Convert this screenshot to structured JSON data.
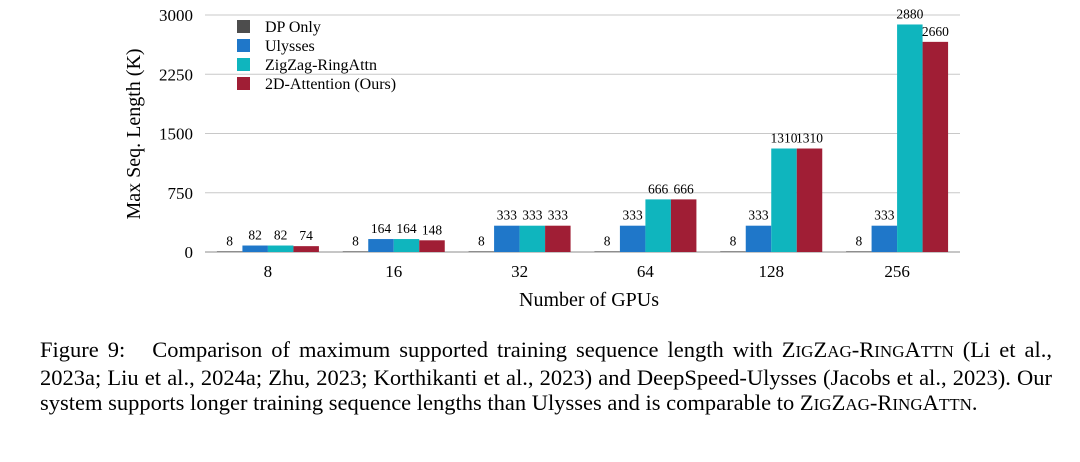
{
  "chart_data": {
    "type": "bar",
    "xlabel": "Number of GPUs",
    "ylabel": "Max Seq. Length (K)",
    "categories": [
      "8",
      "16",
      "32",
      "64",
      "128",
      "256"
    ],
    "ylim": [
      0,
      3000
    ],
    "yticks": [
      0,
      750,
      1500,
      2250,
      3000
    ],
    "grid": true,
    "legend_position": "top-left",
    "series": [
      {
        "name": "DP Only",
        "color": "#4d4d4d",
        "values": [
          8,
          8,
          8,
          8,
          8,
          8
        ],
        "labels": [
          "8",
          "8",
          "8",
          "8",
          "8",
          "8"
        ]
      },
      {
        "name": "Ulysses",
        "color": "#1f77c9",
        "values": [
          82,
          164,
          333,
          333,
          333,
          333
        ],
        "labels": [
          "82",
          "164",
          "333",
          "333",
          "333",
          "333"
        ]
      },
      {
        "name": "ZigZag-RingAttn",
        "color": "#0fb5be",
        "values": [
          82,
          164,
          333,
          666,
          1310,
          2880
        ],
        "labels": [
          "82",
          "164",
          "333",
          "666",
          "1310",
          "2880"
        ]
      },
      {
        "name": "2D-Attention (Ours)",
        "color": "#a01e35",
        "values": [
          74,
          148,
          333,
          666,
          1310,
          2660
        ],
        "labels": [
          "74",
          "148",
          "333",
          "666",
          "1310",
          "2660"
        ]
      }
    ]
  },
  "caption": {
    "label": "Figure 9:",
    "parts": [
      {
        "text": "Comparison of maximum supported training sequence length with ",
        "style": "normal"
      },
      {
        "text": "ZIGZAG-RINGATTN",
        "style": "smallcaps"
      },
      {
        "text": " (Li et al., 2023a; Liu et al., 2024a; Zhu, 2023; Korthikanti et al., 2023) and DeepSpeed-Ulysses (Jacobs et al., 2023). Our system supports longer training sequence lengths than Ulysses and is comparable to ",
        "style": "normal"
      },
      {
        "text": "ZIGZAG-RINGATTN",
        "style": "smallcaps"
      },
      {
        "text": ".",
        "style": "normal"
      }
    ]
  }
}
